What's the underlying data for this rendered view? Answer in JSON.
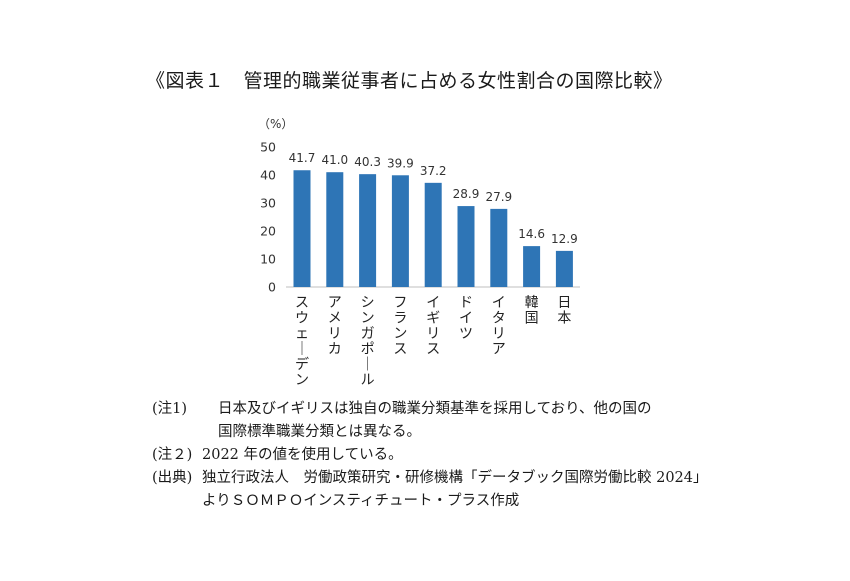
{
  "title": "《図表１　管理的職業従事者に占める女性割合の国際比較》",
  "chart_data": {
    "type": "bar",
    "unit_label": "（%）",
    "categories": [
      "スウェーデン",
      "アメリカ",
      "シンガポール",
      "フランス",
      "イギリス",
      "ドイツ",
      "イタリア",
      "韓国",
      "日本"
    ],
    "values": [
      41.7,
      41.0,
      40.3,
      39.9,
      37.2,
      28.9,
      27.9,
      14.6,
      12.9
    ],
    "value_labels": [
      "41.7",
      "41.0",
      "40.3",
      "39.9",
      "37.2",
      "28.9",
      "27.9",
      "14.6",
      "12.9"
    ],
    "yticks": [
      "0",
      "10",
      "20",
      "30",
      "40",
      "50"
    ],
    "ylim": [
      0,
      50
    ],
    "bar_color": "#2E75B6",
    "grid": false
  },
  "notes": {
    "note1_label": "(注1)",
    "note1_line1": "日本及びイギリスは独自の職業分類基準を採用しており、他の国の",
    "note1_line2": "国際標準職業分類とは異なる。",
    "note2_label": "(注２)",
    "note2_text": "2022 年の値を使用している。",
    "source_label": "(出典)",
    "source_line1": "独立行政法人　労働政策研究・研修機構「データブック国際労働比較 2024」",
    "source_line2": "よりＳＯＭＰＯインスティチュート・プラス作成"
  }
}
